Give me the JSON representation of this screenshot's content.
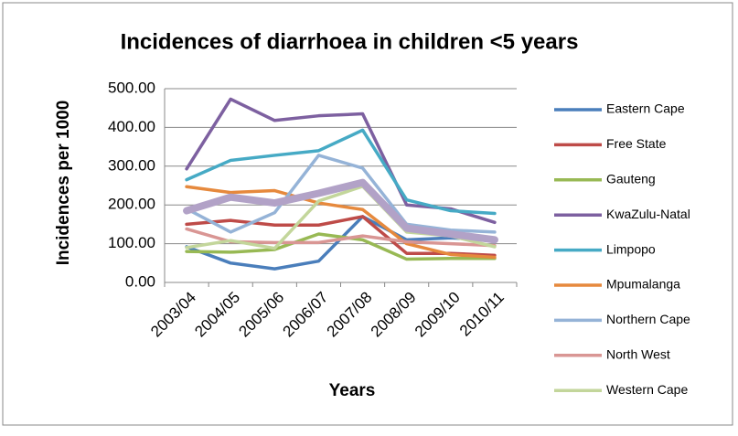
{
  "chart_data": {
    "type": "line",
    "title": "Incidences of diarrhoea in children <5 years",
    "x_label": "Years",
    "y_label": "Incidences per 1000",
    "categories": [
      "2003/04",
      "2004/05",
      "2005/06",
      "2006/07",
      "2007/08",
      "2008/09",
      "2009/10",
      "2010/11"
    ],
    "ylim": [
      0,
      500
    ],
    "yticks": [
      {
        "value": 0,
        "label": "0.00"
      },
      {
        "value": 100,
        "label": "100.00"
      },
      {
        "value": 200,
        "label": "200.00"
      },
      {
        "value": 300,
        "label": "300.00"
      },
      {
        "value": 400,
        "label": "400.00"
      },
      {
        "value": 500,
        "label": "500.00"
      }
    ],
    "grid": true,
    "legend": "right",
    "series": [
      {
        "name": "Eastern Cape",
        "color": "#4a7ebb",
        "values": [
          92,
          50,
          35,
          55,
          170,
          110,
          115,
          110
        ]
      },
      {
        "name": "Free State",
        "color": "#be4b48",
        "values": [
          150,
          160,
          148,
          148,
          170,
          75,
          75,
          70
        ]
      },
      {
        "name": "Gauteng",
        "color": "#98b954",
        "values": [
          80,
          78,
          85,
          125,
          110,
          60,
          62,
          62
        ]
      },
      {
        "name": "KwaZulu-Natal",
        "color": "#7d60a0",
        "values": [
          293,
          473,
          418,
          430,
          435,
          200,
          190,
          155
        ]
      },
      {
        "name": "Limpopo",
        "color": "#46aac5",
        "values": [
          265,
          315,
          328,
          340,
          393,
          213,
          185,
          178
        ]
      },
      {
        "name": "Mpumalanga",
        "color": "#e6893d",
        "values": [
          247,
          232,
          237,
          205,
          188,
          100,
          72,
          65
        ]
      },
      {
        "name": "Northern Cape",
        "color": "#95b3d7",
        "values": [
          190,
          130,
          180,
          328,
          295,
          150,
          135,
          130
        ]
      },
      {
        "name": "North West",
        "color": "#d99694",
        "values": [
          138,
          105,
          103,
          103,
          120,
          105,
          100,
          95
        ]
      },
      {
        "name": "Western Cape",
        "color": "#c3d69b",
        "values": [
          90,
          108,
          88,
          210,
          248,
          130,
          120,
          92
        ]
      },
      {
        "color": "#b2a2c7",
        "values": [
          185,
          220,
          205,
          230,
          258,
          140,
          125,
          110
        ]
      }
    ]
  }
}
